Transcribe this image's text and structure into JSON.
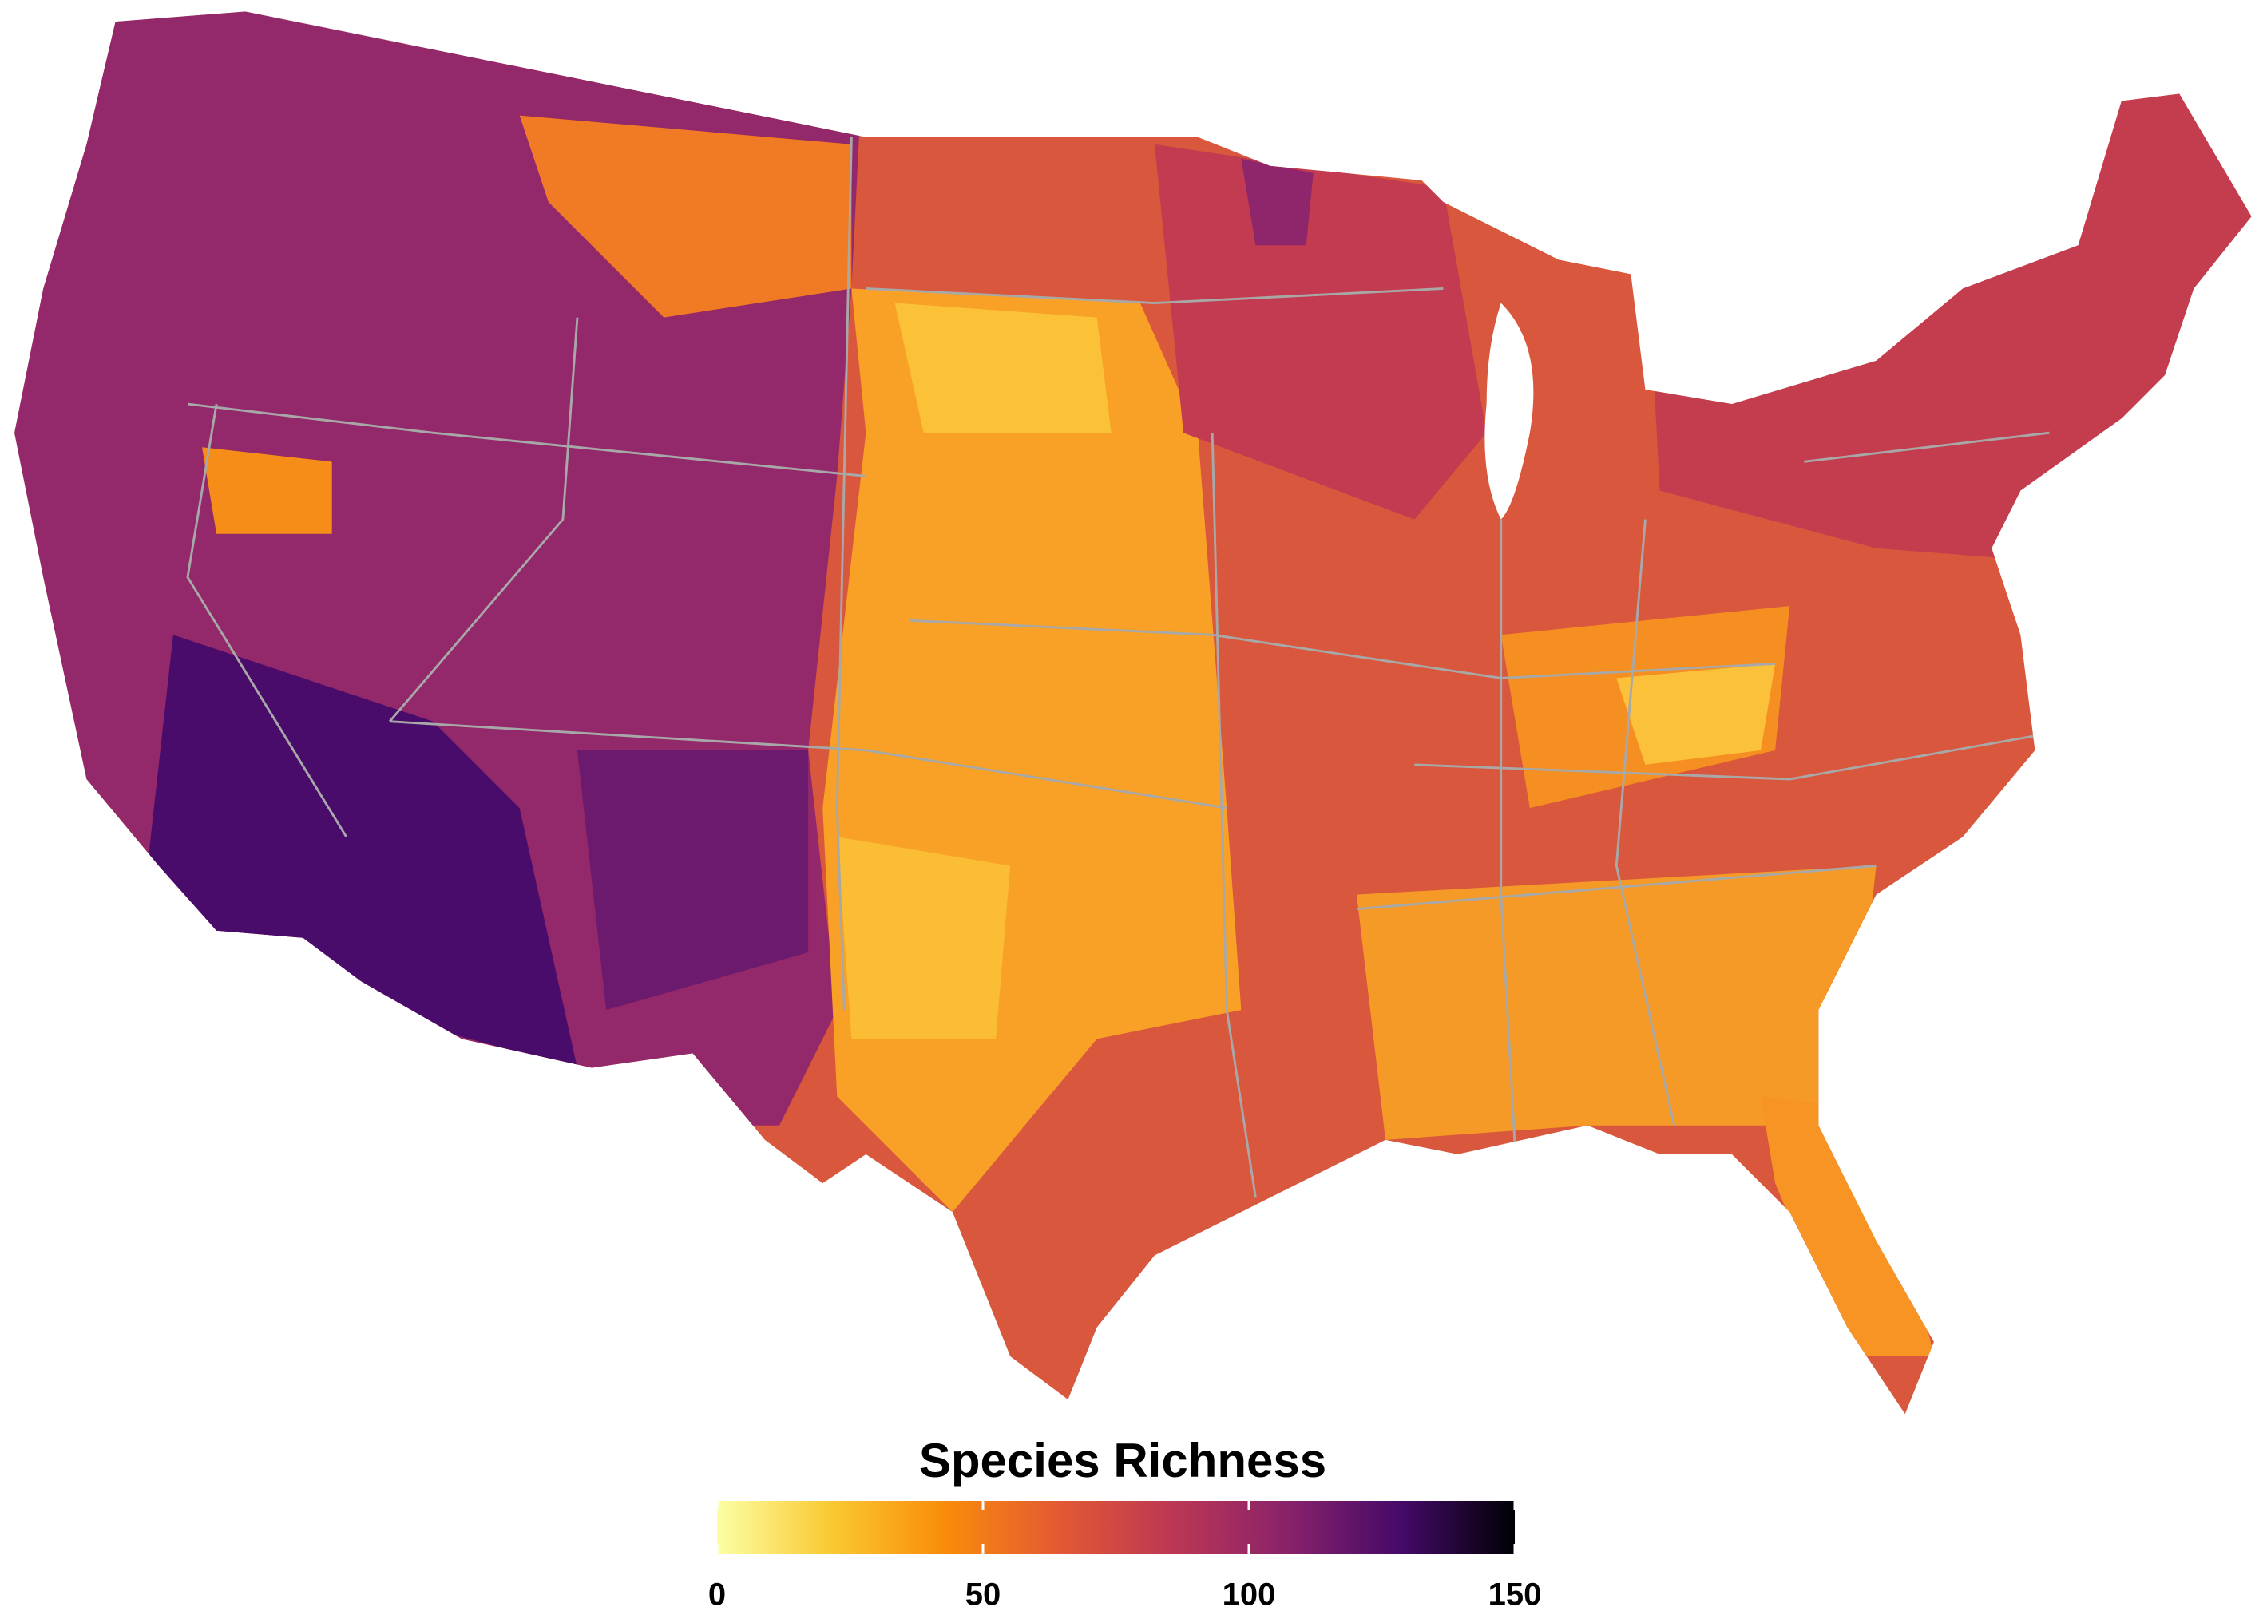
{
  "legend": {
    "title": "Species Richness",
    "range": [
      0,
      150
    ],
    "ticks": [
      0,
      50,
      100,
      150
    ],
    "colors": [
      "#fcffa4",
      "#f9c932",
      "#f98c0a",
      "#e35933",
      "#bc3754",
      "#89226a",
      "#450a69",
      "#000004"
    ]
  }
}
